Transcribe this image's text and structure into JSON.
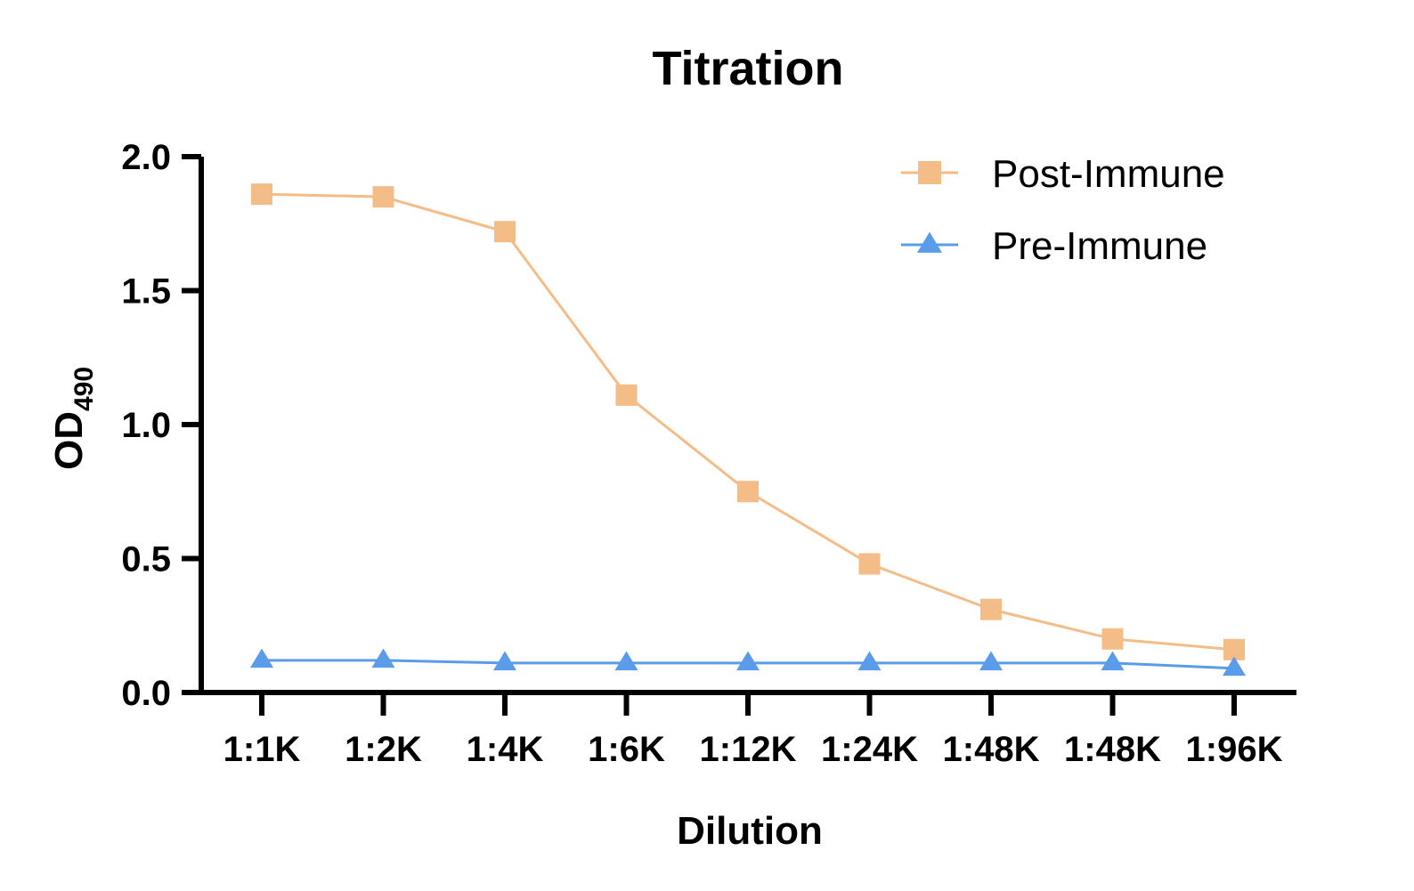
{
  "chart_data": {
    "type": "line",
    "title": "Titration",
    "xlabel": "Dilution",
    "ylabel_main": "OD",
    "ylabel_sub": "490",
    "categories": [
      "1:1K",
      "1:2K",
      "1:4K",
      "1:6K",
      "1:12K",
      "1:24K",
      "1:48K",
      "1:48K",
      "1:96K"
    ],
    "ylim": [
      0,
      2.0
    ],
    "yticks": [
      "0.0",
      "0.5",
      "1.0",
      "1.5",
      "2.0"
    ],
    "ytick_values": [
      0,
      0.5,
      1.0,
      1.5,
      2.0
    ],
    "grid": false,
    "legend_position": "top-right",
    "series": [
      {
        "name": "Post-Immune",
        "marker": "square",
        "color": "#F4BC86",
        "values": [
          1.86,
          1.85,
          1.72,
          1.11,
          0.75,
          0.48,
          0.31,
          0.2,
          0.16
        ]
      },
      {
        "name": "Pre-Immune",
        "marker": "triangle",
        "color": "#5A9CEA",
        "values": [
          0.12,
          0.12,
          0.11,
          0.11,
          0.11,
          0.11,
          0.11,
          0.11,
          0.09
        ]
      }
    ]
  }
}
